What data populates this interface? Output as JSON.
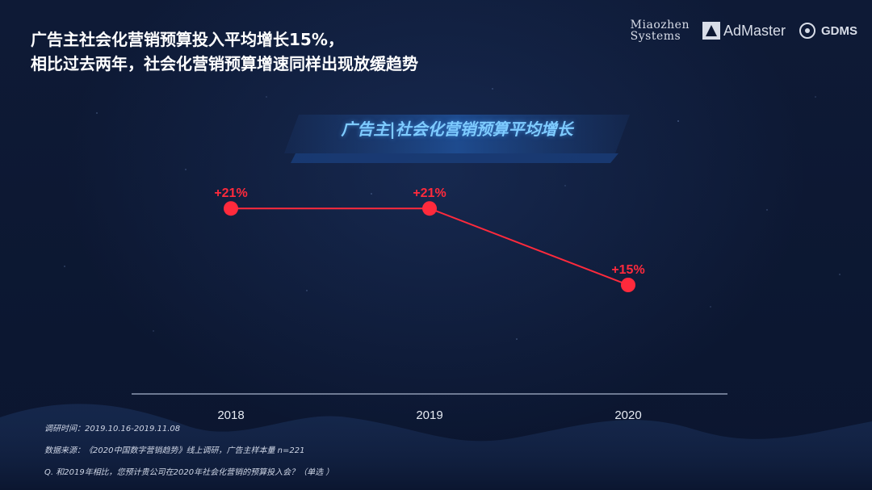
{
  "header": {
    "title_line1": "广告主社会化营销预算投入平均增长15%，",
    "title_line2": "相比过去两年，社会化营销预算增速同样出现放缓趋势"
  },
  "logos": {
    "miaozhen_line1": "Miaozhen",
    "miaozhen_line2": "Systems",
    "admaster": "AdMaster",
    "gdms": "GDMS"
  },
  "chart_data": {
    "type": "line",
    "title": "广告主|社会化营销预算平均增长",
    "categories": [
      "2018",
      "2019",
      "2020"
    ],
    "values": [
      21,
      21,
      15
    ],
    "data_labels": [
      "+21%",
      "+21%",
      "+15%"
    ],
    "ylim": [
      0,
      25
    ],
    "grid": false,
    "series_color": "#ff2a3c"
  },
  "notes": {
    "survey_time": "调研时间：2019.10.16-2019.11.08",
    "source": "数据来源：《2020中国数字营销趋势》线上调研，广告主样本量 n=221",
    "question": "Q. 和2019年相比，您预计贵公司在2020年社会化营销的预算投入会？（单选 ）"
  }
}
